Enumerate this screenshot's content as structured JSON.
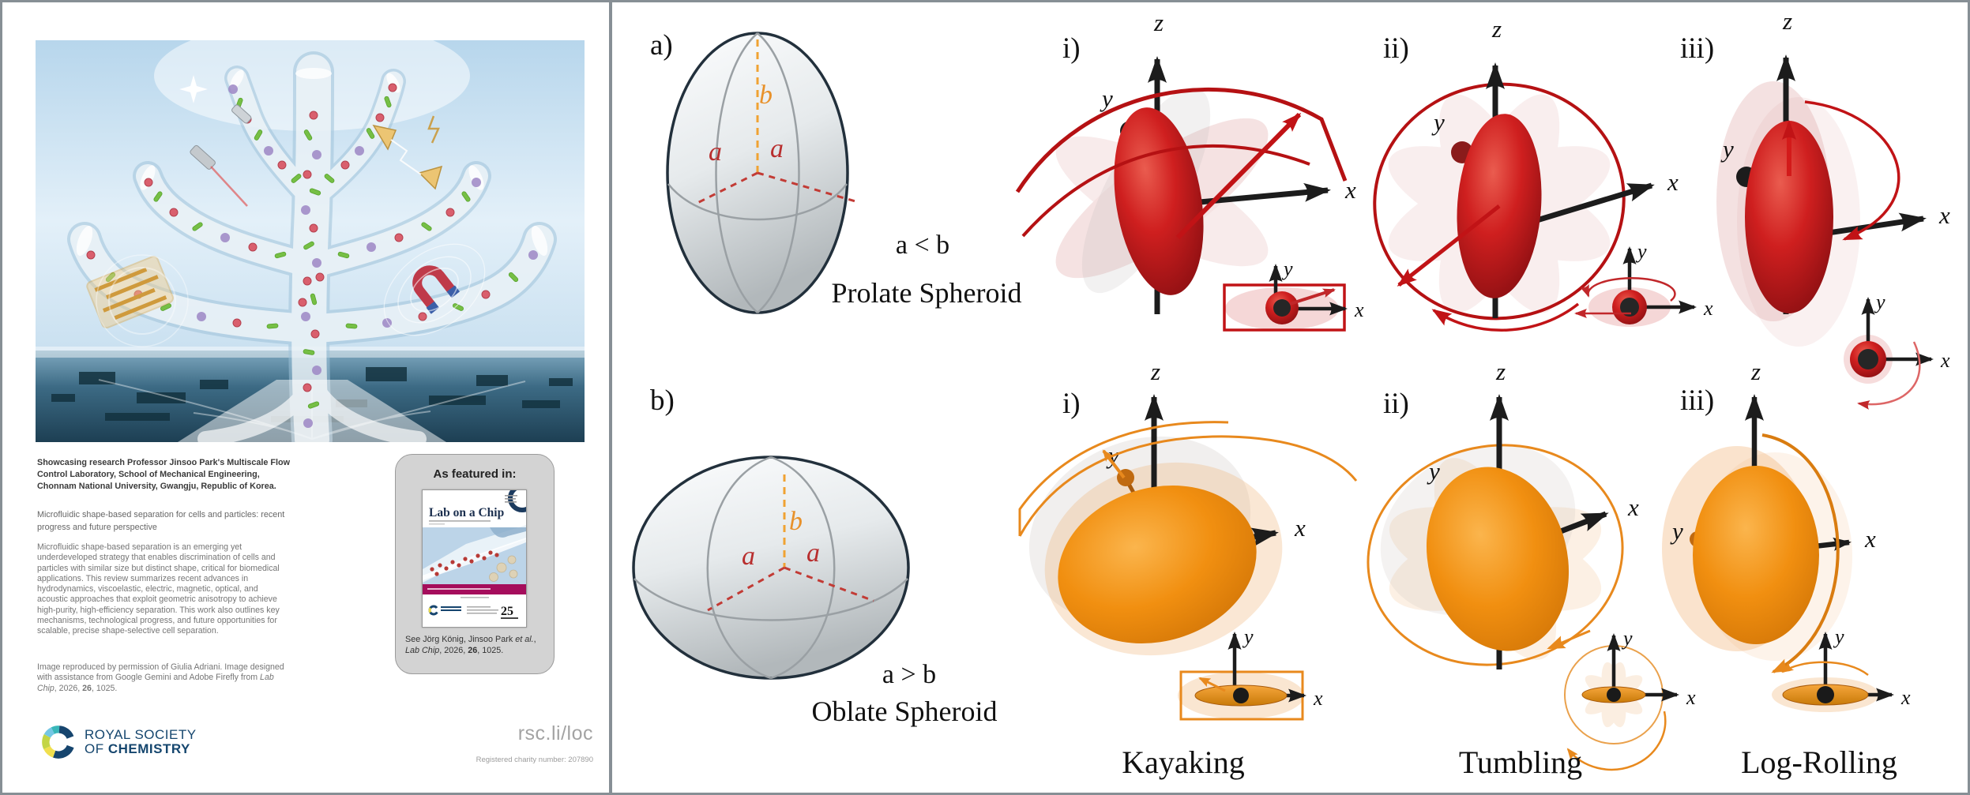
{
  "flyer": {
    "showcasing": "Showcasing research Professor Jinsoo Park's Multiscale Flow Control Laboratory, School of Mechanical Engineering, Chonnam National University, Gwangju, Republic of Korea.",
    "article_title": "Microfluidic shape-based separation for cells and particles: recent progress and future perspective",
    "abstract": "Microfluidic shape-based separation is an emerging yet underdeveloped strategy that enables discrimination of cells and particles with similar size but distinct shape, critical for biomedical applications. This review summarizes recent advances in hydrodynamics, viscoelastic, electric, magnetic, optical, and acoustic approaches that exploit geometric anisotropy to achieve high-purity, high-efficiency separation. This work also outlines key mechanisms, technological progress, and future opportunities for scalable, precise shape-selective cell separation.",
    "credit_parts": [
      {
        "t": "Image reproduced by permission of Giulia Adriani. Image designed with assistance from Google Gemini and Adobe Firefly from "
      },
      {
        "t": "Lab Chip",
        "i": 1
      },
      {
        "t": ", 2026, "
      },
      {
        "t": "26",
        "b": 1
      },
      {
        "t": ", 1025."
      }
    ],
    "featured": {
      "title": "As featured in:",
      "journal_title": "Lab on a Chip",
      "badge": "25",
      "citation_parts": [
        {
          "t": "See Jörg König, Jinsoo Park "
        },
        {
          "t": "et al.",
          "i": 1
        },
        {
          "t": ","
        },
        {
          "br": 1
        },
        {
          "t": "Lab Chip",
          "i": 1
        },
        {
          "t": ", 2026, "
        },
        {
          "t": "26",
          "b": 1
        },
        {
          "t": ", 1025."
        }
      ]
    },
    "footer": {
      "society_line1": "ROYAL SOCIETY",
      "society_line2_prefix": "OF ",
      "society_line2_bold": "CHEMISTRY",
      "link": "rsc.li/loc",
      "charity": "Registered charity number: 207890"
    }
  },
  "diagram": {
    "panel_a": {
      "label": "a)",
      "relation": "a < b",
      "name": "Prolate Spheroid"
    },
    "panel_b": {
      "label": "b)",
      "relation": "a > b",
      "name": "Oblate Spheroid"
    },
    "roman": [
      "i)",
      "ii)",
      "iii)"
    ],
    "axis": {
      "x": "x",
      "y": "y",
      "z": "z"
    },
    "dims": {
      "a": "a",
      "b": "b"
    },
    "motions": {
      "kayaking": "Kayaking",
      "tumbling": "Tumbling",
      "log_rolling": "Log-Rolling"
    },
    "colors": {
      "prolate_red": "#c41a1a",
      "oblate_orange": "#f18f10",
      "red_arrow": "#c11316",
      "orange_arrow": "#e8891d",
      "axis_black": "#1c1c1c",
      "dim_a": "#b82e2e",
      "dim_b": "#e8912a",
      "banner_magenta": "#a50d5c",
      "rsc_navy": "#15466e"
    }
  }
}
